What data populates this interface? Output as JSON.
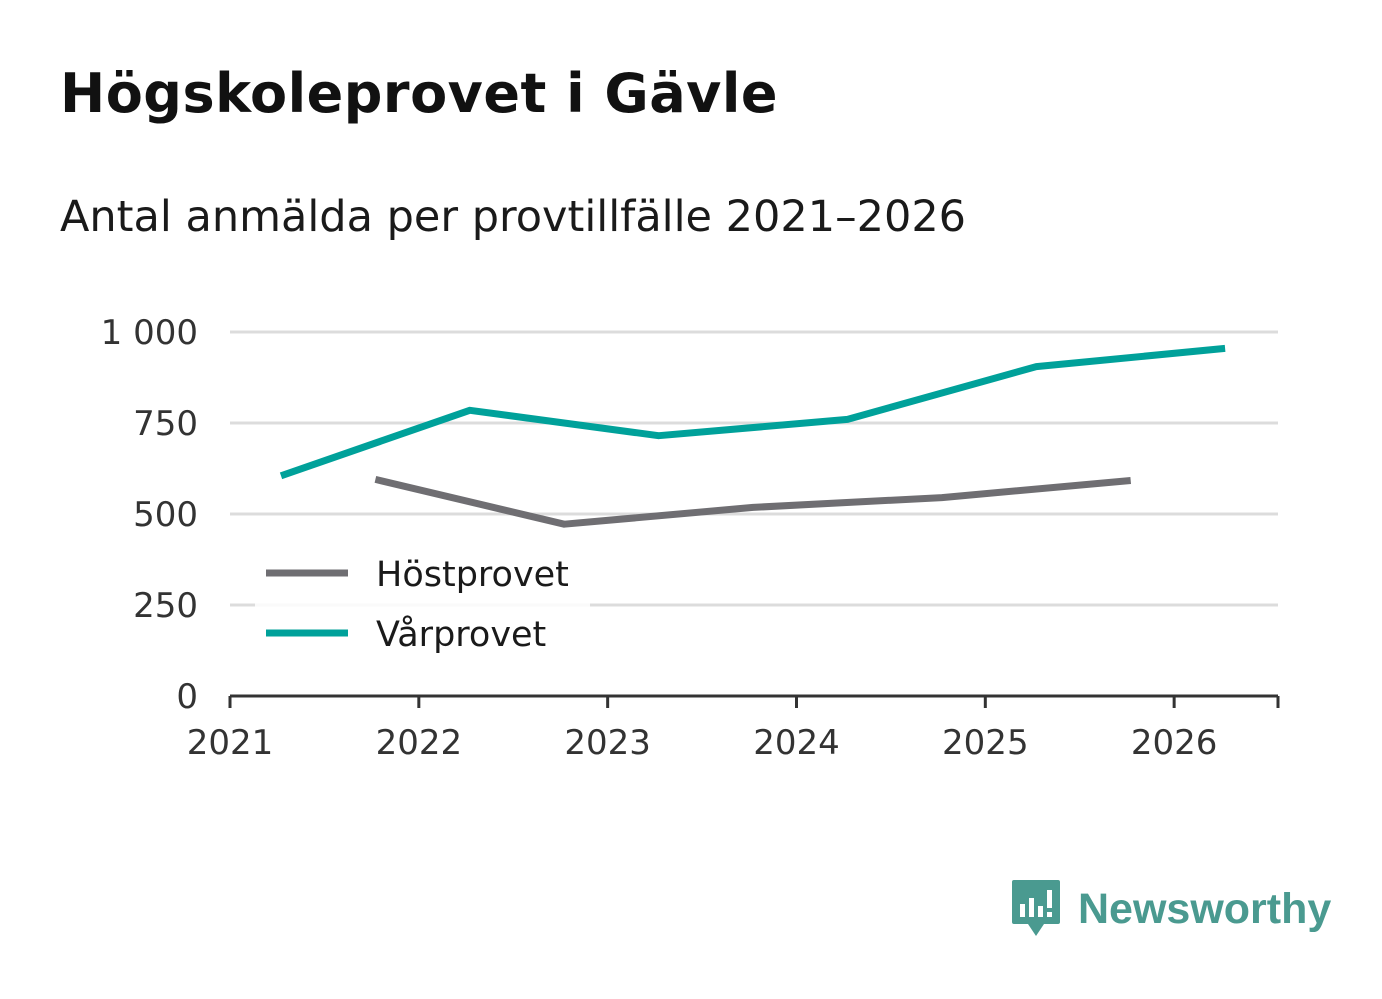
{
  "title": "Högskoleprovet i Gävle",
  "subtitle": "Antal anmälda per provtillfälle 2021–2026",
  "brand": {
    "name": "Newsworthy",
    "icon": "newsworthy-logo-icon",
    "color": "#4a9a90"
  },
  "chart_data": {
    "type": "line",
    "title": "Högskoleprovet i Gävle",
    "subtitle": "Antal anmälda per provtillfälle 2021–2026",
    "xlabel": "",
    "ylabel": "",
    "x_ticks": [
      "2021",
      "2022",
      "2023",
      "2024",
      "2025",
      "2026"
    ],
    "x_tick_values": [
      2021,
      2022,
      2023,
      2024,
      2025,
      2026
    ],
    "xlim": [
      2021,
      2026.55
    ],
    "y_ticks": [
      "0",
      "250",
      "500",
      "750",
      "1 000"
    ],
    "y_tick_values": [
      0,
      250,
      500,
      750,
      1000
    ],
    "ylim": [
      0,
      1000
    ],
    "grid": true,
    "legend_position": "lower-left",
    "series": [
      {
        "name": "Höstprovet",
        "color": "#6f6e72",
        "x": [
          2021.77,
          2022.77,
          2023.77,
          2024.77,
          2025.77
        ],
        "values": [
          595,
          472,
          518,
          545,
          592
        ]
      },
      {
        "name": "Vårprovet",
        "color": "#00a19a",
        "x": [
          2021.27,
          2022.27,
          2023.27,
          2024.27,
          2025.27,
          2026.27
        ],
        "values": [
          605,
          785,
          715,
          760,
          905,
          955
        ]
      }
    ]
  }
}
